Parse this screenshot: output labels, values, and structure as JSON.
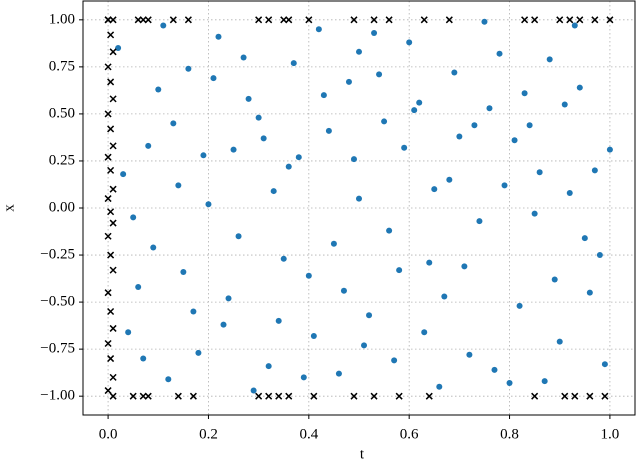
{
  "chart_data": {
    "type": "scatter",
    "xlabel": "t",
    "ylabel": "x",
    "xlim": [
      -0.05,
      1.05
    ],
    "ylim": [
      -1.1,
      1.1
    ],
    "grid": true,
    "xticks": [
      {
        "value": 0,
        "label": "0.0"
      },
      {
        "value": 0.2,
        "label": "0.2"
      },
      {
        "value": 0.4,
        "label": "0.4"
      },
      {
        "value": 0.6,
        "label": "0.6"
      },
      {
        "value": 0.8,
        "label": "0.8"
      },
      {
        "value": 1,
        "label": "1.0"
      }
    ],
    "yticks": [
      {
        "value": -1,
        "label": "−1.00"
      },
      {
        "value": -0.75,
        "label": "−0.75"
      },
      {
        "value": -0.5,
        "label": "−0.50"
      },
      {
        "value": -0.25,
        "label": "−0.25"
      },
      {
        "value": 0,
        "label": "0.00"
      },
      {
        "value": 0.25,
        "label": "0.25"
      },
      {
        "value": 0.5,
        "label": "0.50"
      },
      {
        "value": 0.75,
        "label": "0.75"
      },
      {
        "value": 1,
        "label": "1.00"
      }
    ],
    "series": [
      {
        "color": "#1f77b4",
        "marker": "o",
        "x": [
          0.02,
          0.06,
          0.1,
          0.14,
          0.18,
          0.22,
          0.26,
          0.3,
          0.34,
          0.38,
          0.42,
          0.46,
          0.5,
          0.54,
          0.58,
          0.62,
          0.66,
          0.7,
          0.74,
          0.78,
          0.82,
          0.86,
          0.9,
          0.94,
          0.98,
          0.04,
          0.08,
          0.12,
          0.16,
          0.2,
          0.24,
          0.28,
          0.32,
          0.36,
          0.4,
          0.44,
          0.48,
          0.52,
          0.56,
          0.6,
          0.64,
          0.68,
          0.72,
          0.76,
          0.8,
          0.84,
          0.88,
          0.92,
          0.96,
          1.0,
          0.03,
          0.09,
          0.13,
          0.17,
          0.21,
          0.25,
          0.29,
          0.33,
          0.37,
          0.41,
          0.45,
          0.49,
          0.53,
          0.57,
          0.61,
          0.65,
          0.69,
          0.73,
          0.77,
          0.81,
          0.85,
          0.89,
          0.93,
          0.97,
          0.99,
          0.05,
          0.11,
          0.15,
          0.19,
          0.23,
          0.27,
          0.31,
          0.35,
          0.39,
          0.43,
          0.47,
          0.51,
          0.55,
          0.59,
          0.63,
          0.67,
          0.71,
          0.75,
          0.79,
          0.83,
          0.87,
          0.91,
          0.95,
          0.07,
          0.5
        ],
        "y": [
          0.85,
          -0.42,
          0.63,
          0.12,
          -0.77,
          0.91,
          -0.15,
          0.48,
          -0.6,
          0.27,
          0.95,
          -0.88,
          0.05,
          0.71,
          -0.33,
          0.56,
          -0.95,
          0.38,
          -0.07,
          0.82,
          -0.52,
          0.19,
          -0.71,
          0.64,
          -0.25,
          -0.66,
          0.33,
          -0.91,
          0.74,
          0.02,
          -0.48,
          0.58,
          -0.84,
          0.22,
          -0.36,
          0.41,
          0.67,
          -0.57,
          -0.12,
          0.88,
          -0.29,
          0.15,
          -0.78,
          0.53,
          -0.93,
          0.44,
          0.79,
          0.08,
          -0.45,
          0.31,
          0.18,
          -0.21,
          0.45,
          -0.55,
          0.69,
          0.31,
          -0.97,
          0.09,
          0.77,
          -0.68,
          -0.19,
          0.26,
          0.93,
          -0.81,
          0.52,
          0.1,
          0.72,
          0.44,
          -0.86,
          0.36,
          -0.03,
          -0.38,
          0.97,
          0.2,
          -0.83,
          -0.05,
          0.97,
          -0.34,
          0.28,
          -0.62,
          0.8,
          0.37,
          -0.27,
          -0.9,
          0.6,
          -0.44,
          -0.73,
          0.46,
          0.32,
          -0.66,
          -0.47,
          -0.31,
          0.99,
          0.12,
          0.61,
          -0.92,
          0.55,
          -0.16,
          -0.8,
          0.83
        ]
      },
      {
        "color": "#000000",
        "marker": "x",
        "x": [
          0,
          0.005,
          0.01,
          0,
          0.005,
          0.01,
          0,
          0.005,
          0.01,
          0,
          0.005,
          0.01,
          0,
          0.005,
          0.01,
          0,
          0.005,
          0.01,
          0,
          0.005,
          0.01,
          0,
          0.005,
          0.01,
          0,
          0,
          0.01,
          0.06,
          0.07,
          0.08,
          0.13,
          0.16,
          0.3,
          0.32,
          0.35,
          0.36,
          0.4,
          0.49,
          0.53,
          0.56,
          0.63,
          0.68,
          0.83,
          0.85,
          0.9,
          0.92,
          0.94,
          0.97,
          1.0,
          0.01,
          0.05,
          0.07,
          0.08,
          0.14,
          0.17,
          0.3,
          0.32,
          0.34,
          0.36,
          0.41,
          0.49,
          0.53,
          0.58,
          0.64,
          0.85,
          0.91,
          0.93,
          0.96,
          0.99
        ],
        "y": [
          1,
          0.92,
          0.83,
          0.75,
          0.67,
          0.58,
          0.5,
          0.42,
          0.33,
          0.27,
          0.2,
          0.1,
          0.05,
          -0.02,
          -0.08,
          -0.15,
          -0.25,
          -0.33,
          -0.45,
          -0.55,
          -0.64,
          -0.72,
          -0.8,
          -0.9,
          -0.97,
          1,
          1,
          1,
          1,
          1,
          1,
          1,
          1,
          1,
          1,
          1,
          1,
          1,
          1,
          1,
          1,
          1,
          1,
          1,
          1,
          1,
          1,
          1,
          1,
          -1,
          -1,
          -1,
          -1,
          -1,
          -1,
          -1,
          -1,
          -1,
          -1,
          -1,
          -1,
          -1,
          -1,
          -1,
          -1,
          -1,
          -1,
          -1,
          -1
        ]
      }
    ]
  }
}
